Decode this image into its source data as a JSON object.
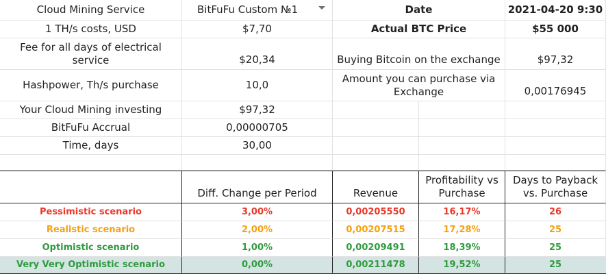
{
  "top": {
    "service_label": "Cloud Mining Service",
    "service_value": "BitFuFu Custom №1",
    "date_label": "Date",
    "date_value": "2021-04-20 9:30"
  },
  "params": {
    "cost_label": "1 TH/s costs, USD",
    "cost_value": "$7,70",
    "fee_label": "Fee for all days of electrical service",
    "fee_value": "$20,34",
    "hash_label": "Hashpower, Th/s purchase",
    "hash_value": "10,0",
    "invest_label": "Your Cloud Mining investing",
    "invest_value": "$97,32",
    "accrual_label": "BitFuFu Accrual",
    "accrual_value": "0,00000705",
    "time_label": "Time, days",
    "time_value": "30,00"
  },
  "btc": {
    "price_label": "Actual BTC Price",
    "price_value": "$55 000",
    "buy_label": "Buying Bitcoin on the exchange",
    "buy_value": "$97,32",
    "amount_label": "Amount you can purchase via Exchange",
    "amount_value": "0,00176945"
  },
  "scenario_headers": {
    "diff": "Diff. Change per Period",
    "revenue": "Revenue",
    "profit": "Profitability vs Purchase",
    "payback": "Days to Payback vs. Purchase"
  },
  "scenarios": [
    {
      "name": "Pessimistic scenario",
      "diff": "3,00%",
      "revenue": "0,00205550",
      "profit": "16,17%",
      "payback": "26",
      "color": "#e8392b"
    },
    {
      "name": "Realistic scenario",
      "diff": "2,00%",
      "revenue": "0,00207515",
      "profit": "17,28%",
      "payback": "25",
      "color": "#f5a011"
    },
    {
      "name": "Optimistic scenario",
      "diff": "1,00%",
      "revenue": "0,00209491",
      "profit": "18,39%",
      "payback": "25",
      "color": "#2f9a3e"
    },
    {
      "name": "Very Very Optimistic scenario",
      "diff": "0,00%",
      "revenue": "0,00211478",
      "profit": "19,52%",
      "payback": "25",
      "color": "#2f9a3e"
    }
  ],
  "colors": {
    "highlight_row": "#d4e4e3",
    "pessimistic": "#e8392b",
    "realistic": "#f5a011",
    "optimistic": "#2f9a3e"
  },
  "icons": {
    "dropdown": "chevron-down-icon"
  }
}
